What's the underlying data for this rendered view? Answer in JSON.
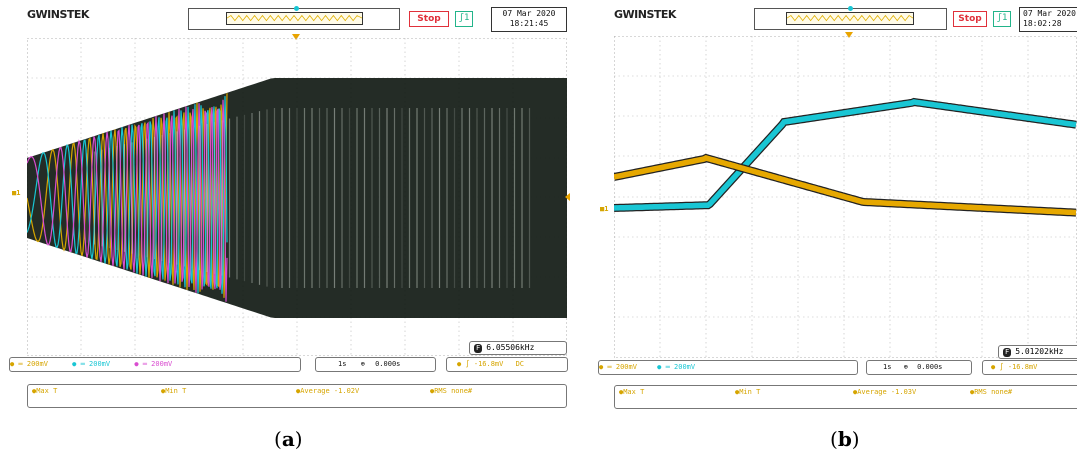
{
  "panel_a": {
    "brand": "GWINSTEK",
    "run_state": "Stop",
    "trigger_icon": "trigger-mode-icon",
    "date": "07 Mar 2020",
    "time": "18:21:45",
    "ch1_scale": "200mV",
    "ch2_scale": "200mV",
    "ch3_scale": "200mV",
    "timebase": "1s",
    "delay": "0.000s",
    "frequency": "6.05506kHz",
    "trigger_level": "-16.8mV",
    "trigger_tag": "DC",
    "measurements": [
      {
        "label": "Max T"
      },
      {
        "label": "Min T"
      },
      {
        "label": "Average -1.02V"
      },
      {
        "label": "RMS none#"
      }
    ],
    "caption_open": "(",
    "caption_letter": "a",
    "caption_close": ")",
    "colors": {
      "ch1": "#d6a500",
      "ch2": "#19c6d4",
      "ch3": "#d94dd0",
      "stop": "#e0303a"
    }
  },
  "panel_b": {
    "brand": "GWINSTEK",
    "run_state": "Stop",
    "trigger_icon": "trigger-mode-icon",
    "date": "07 Mar 2020",
    "time": "18:02:28",
    "ch1_scale": "200mV",
    "ch2_scale": "200mV",
    "timebase": "1s",
    "delay": "0.000s",
    "frequency": "5.01202kHz",
    "trigger_level": "-16.8mV",
    "measurements": [
      {
        "label": "Max T"
      },
      {
        "label": "Min T"
      },
      {
        "label": "Average -1.03V"
      },
      {
        "label": "RMS none#"
      }
    ],
    "caption_open": "(",
    "caption_letter": "b",
    "caption_close": ")",
    "colors": {
      "ch1": "#e6a800",
      "ch2": "#19c6d4"
    }
  }
}
